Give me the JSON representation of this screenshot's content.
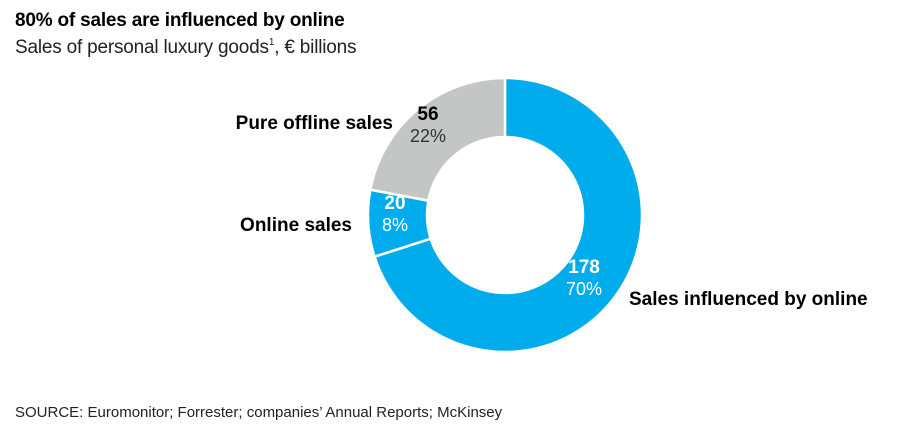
{
  "title": "80% of sales are influenced by online",
  "subtitle": {
    "text": "Sales of personal luxury goods",
    "footnote_marker": "1",
    "unit": ", € billions"
  },
  "source": "SOURCE: Euromonitor; Forrester; companies’ Annual Reports; McKinsey",
  "chart_data": {
    "type": "pie",
    "donut": true,
    "slices": [
      {
        "label": "Sales influenced by online",
        "value": 178,
        "value_label": "178",
        "percent_label": "70%",
        "color": "#00acec"
      },
      {
        "label": "Online sales",
        "value": 20,
        "value_label": "20",
        "percent_label": "8%",
        "color": "#00acec"
      },
      {
        "label": "Pure offline sales",
        "value": 56,
        "value_label": "56",
        "percent_label": "22%",
        "color": "#c4c6c6"
      }
    ],
    "value_label_color_on_blue": "#ffffff",
    "value_label_color_on_grey": "#000000"
  }
}
